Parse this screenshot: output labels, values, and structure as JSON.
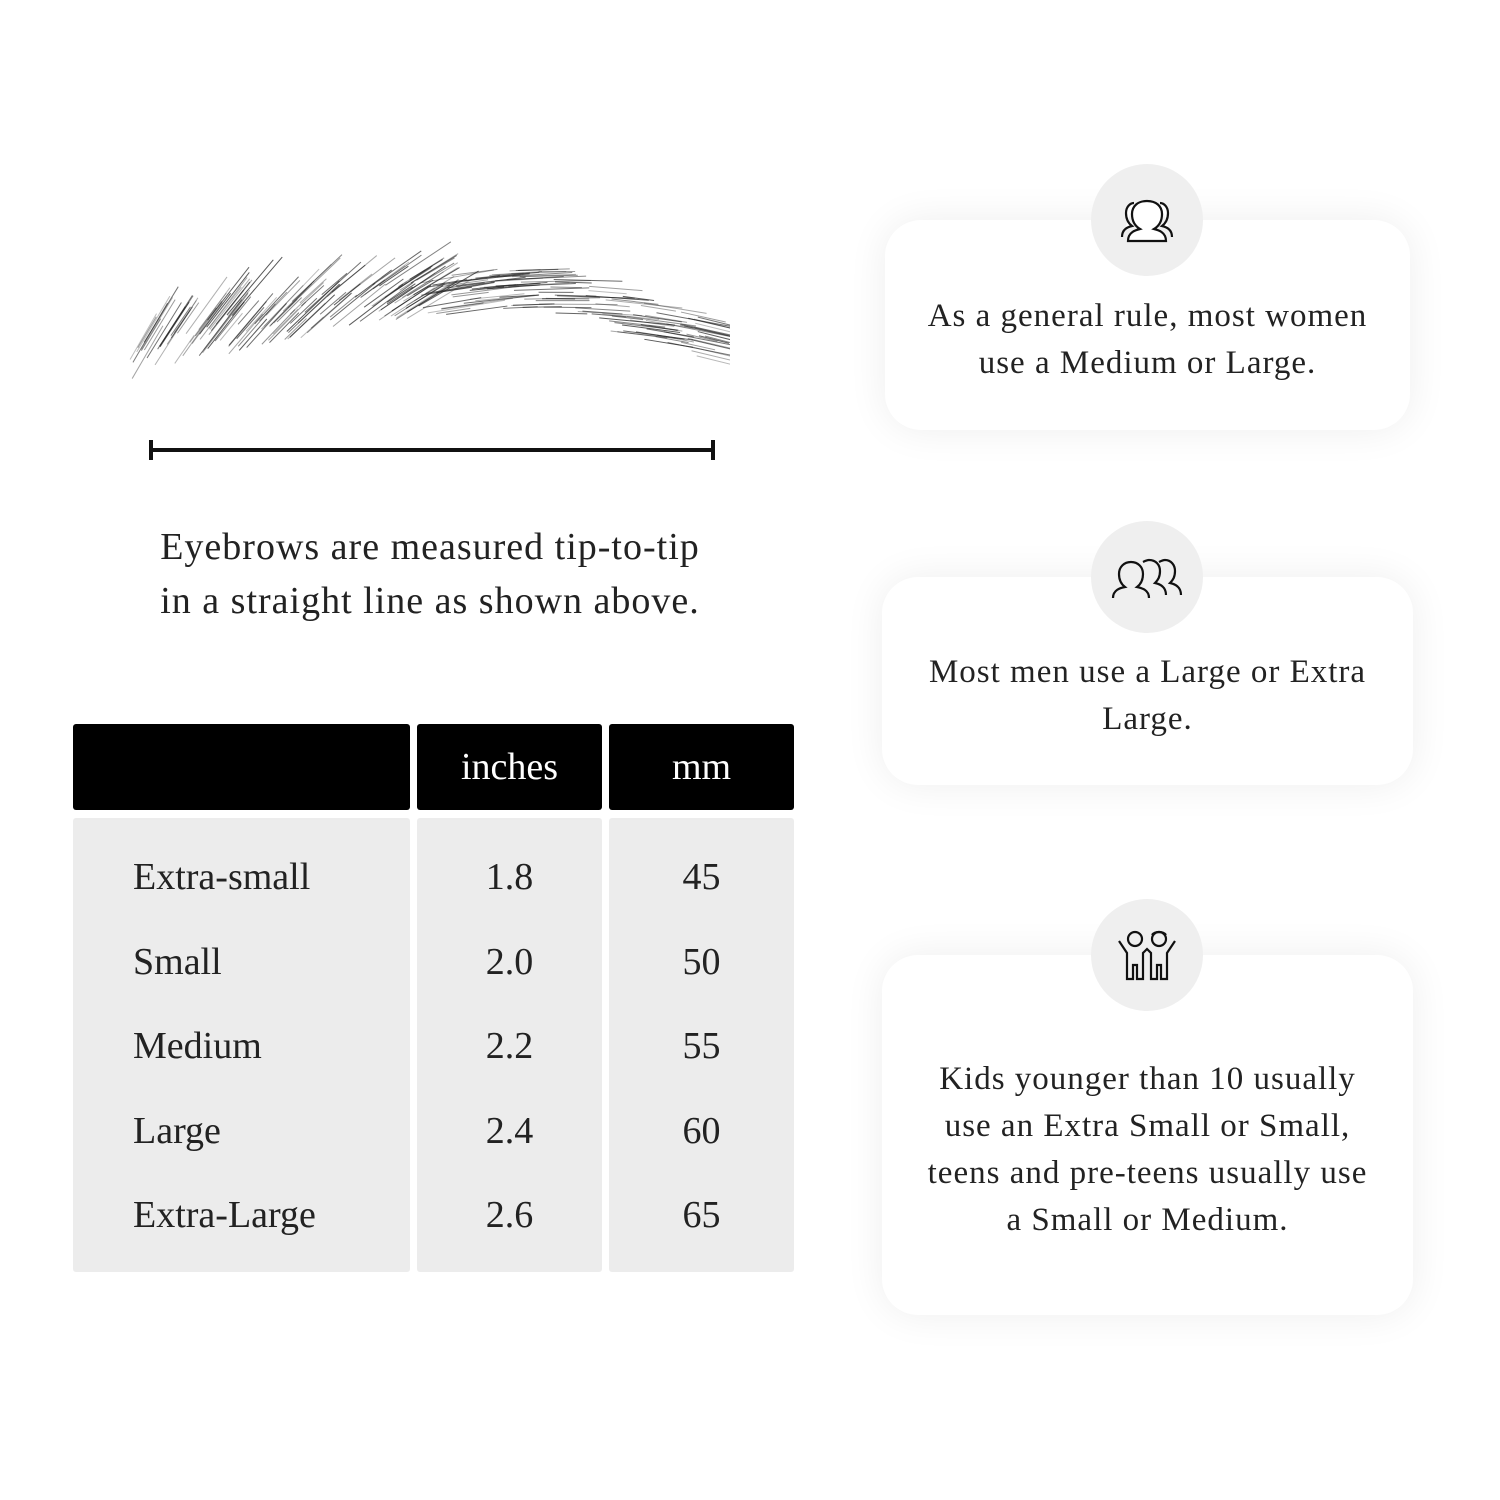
{
  "caption": {
    "line1": "Eyebrows are measured tip-to-tip",
    "line2": "in a straight line as shown above."
  },
  "table": {
    "headers": [
      "",
      "inches",
      "mm"
    ],
    "rows": [
      {
        "size": "Extra-small",
        "inches": "1.8",
        "mm": "45"
      },
      {
        "size": "Small",
        "inches": "2.0",
        "mm": "50"
      },
      {
        "size": "Medium",
        "inches": "2.2",
        "mm": "55"
      },
      {
        "size": "Large",
        "inches": "2.4",
        "mm": "60"
      },
      {
        "size": "Extra-Large",
        "inches": "2.6",
        "mm": "65"
      }
    ]
  },
  "cards": [
    {
      "icon": "women-group-icon",
      "text": "As a general rule, most women use a Medium or Large."
    },
    {
      "icon": "men-group-icon",
      "text": "Most men use a Large or Extra Large."
    },
    {
      "icon": "kids-icon",
      "text": "Kids younger than 10 usually use an Extra Small or Small, teens and pre-teens usually use a Small or Medium."
    }
  ]
}
